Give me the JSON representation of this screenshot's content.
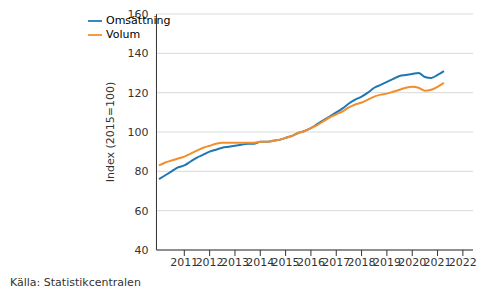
{
  "chart_data": {
    "type": "line",
    "y_label": "Index (2015=100)",
    "source": "Källa: Statistikcentralen",
    "x": [
      2010.0,
      2010.25,
      2010.5,
      2010.75,
      2011.0,
      2011.25,
      2011.5,
      2011.75,
      2012.0,
      2012.25,
      2012.5,
      2012.75,
      2013.0,
      2013.25,
      2013.5,
      2013.75,
      2014.0,
      2014.25,
      2014.5,
      2014.75,
      2015.0,
      2015.25,
      2015.5,
      2015.75,
      2016.0,
      2016.25,
      2016.5,
      2016.75,
      2017.0,
      2017.25,
      2017.5,
      2017.75,
      2018.0,
      2018.25,
      2018.5,
      2018.75,
      2019.0,
      2019.25,
      2019.5,
      2019.75,
      2020.0,
      2020.25,
      2020.5,
      2020.75,
      2021.0,
      2021.25
    ],
    "series": [
      {
        "name": "Omsättning",
        "color": "#1f77b4",
        "values": [
          76,
          78,
          80,
          82,
          83,
          85,
          87,
          88.5,
          90,
          91,
          92,
          92.5,
          93,
          93.5,
          94,
          94,
          95,
          95,
          95.5,
          96,
          97,
          98,
          99.5,
          100.5,
          102,
          104,
          106,
          108,
          110,
          112,
          114.5,
          116.5,
          118,
          120,
          122.5,
          124,
          125.5,
          127,
          128.5,
          129,
          129.5,
          130,
          128,
          127.5,
          129,
          131
        ]
      },
      {
        "name": "Volum",
        "color": "#f28e2b",
        "values": [
          83,
          84.5,
          85.5,
          86.5,
          87.5,
          89,
          90.5,
          92,
          93,
          94,
          94.5,
          94.5,
          94.5,
          94.5,
          94.5,
          94.5,
          95,
          95,
          95.5,
          96,
          97,
          98,
          99.5,
          100.5,
          102,
          103.5,
          105.5,
          107.5,
          109,
          110.5,
          112.5,
          114,
          115,
          116.5,
          118,
          119,
          119.5,
          120.5,
          121.5,
          122.5,
          123,
          122.5,
          121,
          121.5,
          123,
          125
        ]
      }
    ],
    "xlim": [
      2009.9,
      2022.4
    ],
    "xticks": [
      2011,
      2012,
      2013,
      2014,
      2015,
      2016,
      2017,
      2018,
      2019,
      2020,
      2021,
      2022
    ],
    "ylim": [
      40,
      160
    ],
    "yticks": [
      40,
      60,
      80,
      100,
      120,
      140,
      160
    ],
    "grid": true,
    "legend": "top-left"
  }
}
